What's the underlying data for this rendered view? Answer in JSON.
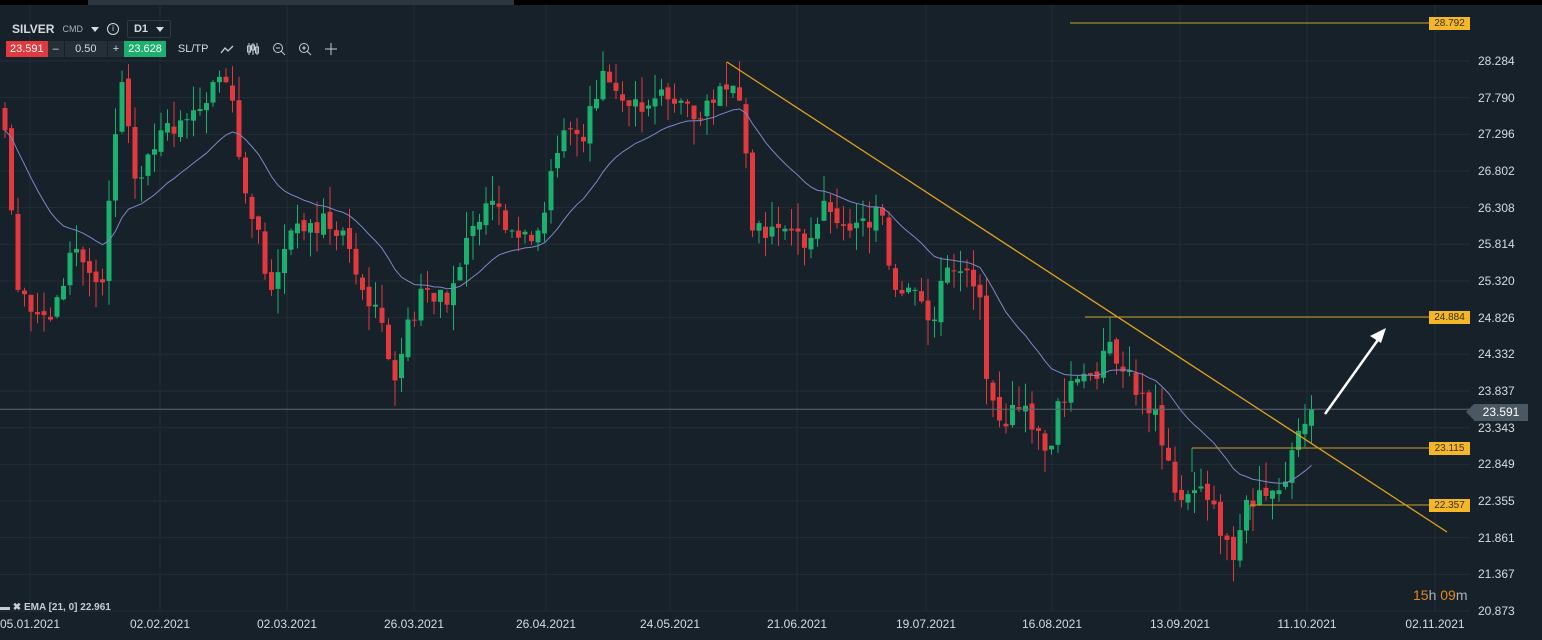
{
  "header": {
    "symbol": "SILVER",
    "type": "CMD",
    "timeframe": "D1",
    "info_icon": "info-icon",
    "dropdown_icon": "chevron-down-icon"
  },
  "trade": {
    "sell_price": "23.591",
    "minus": "–",
    "quantity": "0.50",
    "plus": "+",
    "buy_price": "23.628",
    "sltp": "SL/TP"
  },
  "toolbar": {
    "icons": [
      "line-chart-icon",
      "candlestick-icon",
      "zoom-out-icon",
      "zoom-in-icon",
      "move-icon"
    ]
  },
  "indicator": {
    "label": "EMA [21, 0] 22.961"
  },
  "timer": {
    "h": "15",
    "h_unit": "h ",
    "m": "09",
    "m_unit": "m"
  },
  "colors": {
    "up": "#1bb06d",
    "down": "#e2393f",
    "ema": "#7f86c8",
    "trend": "#e0a21c",
    "level": "#c9a227",
    "grid": "#222d36"
  },
  "chart_data": {
    "type": "candlestick",
    "title": "SILVER D1",
    "ylim": [
      20.873,
      28.284
    ],
    "y_ticks": [
      "28.284",
      "27.790",
      "27.296",
      "26.802",
      "26.308",
      "25.814",
      "25.320",
      "24.826",
      "24.332",
      "23.837",
      "23.343",
      "22.849",
      "22.355",
      "21.861",
      "21.367",
      "20.873"
    ],
    "x_ticks": [
      "05.01.2021",
      "02.02.2021",
      "02.03.2021",
      "26.03.2021",
      "26.04.2021",
      "24.05.2021",
      "21.06.2021",
      "19.07.2021",
      "16.08.2021",
      "13.09.2021",
      "11.10.2021",
      "02.11.2021"
    ],
    "current_price": "23.591",
    "levels": [
      "28.792",
      "24.884",
      "23.115",
      "22.357"
    ],
    "ema_period": 21,
    "close_anchors": [
      [
        0,
        27.35
      ],
      [
        2,
        25.2
      ],
      [
        7,
        24.8
      ],
      [
        10,
        25.7
      ],
      [
        15,
        25.3
      ],
      [
        16,
        26.4
      ],
      [
        18,
        28.0
      ],
      [
        20,
        26.7
      ],
      [
        24,
        27.35
      ],
      [
        28,
        27.5
      ],
      [
        32,
        28.0
      ],
      [
        35,
        27.75
      ],
      [
        37,
        26.5
      ],
      [
        41,
        25.2
      ],
      [
        44,
        26.0
      ],
      [
        47,
        26.1
      ],
      [
        52,
        26.0
      ],
      [
        55,
        25.2
      ],
      [
        57,
        25.0
      ],
      [
        60,
        23.98
      ],
      [
        62,
        24.8
      ],
      [
        65,
        25.2
      ],
      [
        68,
        25.0
      ],
      [
        71,
        25.9
      ],
      [
        75,
        26.4
      ],
      [
        78,
        26.0
      ],
      [
        82,
        26.0
      ],
      [
        84,
        26.8
      ],
      [
        86,
        27.35
      ],
      [
        89,
        27.2
      ],
      [
        92,
        28.15
      ],
      [
        95,
        27.75
      ],
      [
        98,
        27.6
      ],
      [
        101,
        27.9
      ],
      [
        104,
        27.75
      ],
      [
        106,
        27.5
      ],
      [
        108,
        27.75
      ],
      [
        111,
        27.9
      ],
      [
        113,
        27.75
      ],
      [
        115,
        26.0
      ],
      [
        117,
        25.9
      ],
      [
        121,
        26.0
      ],
      [
        124,
        25.9
      ],
      [
        126,
        26.4
      ],
      [
        130,
        26.0
      ],
      [
        135,
        26.2
      ],
      [
        137,
        25.2
      ],
      [
        140,
        25.2
      ],
      [
        143,
        24.8
      ],
      [
        145,
        25.5
      ],
      [
        147,
        25.45
      ],
      [
        150,
        25.1
      ],
      [
        151,
        24.0
      ],
      [
        153,
        23.44
      ],
      [
        156,
        23.6
      ],
      [
        159,
        23.3
      ],
      [
        161,
        23.1
      ],
      [
        162,
        23.7
      ],
      [
        165,
        24.0
      ],
      [
        168,
        24.0
      ],
      [
        170,
        24.5
      ],
      [
        172,
        24.1
      ],
      [
        175,
        23.8
      ],
      [
        177,
        23.6
      ],
      [
        179,
        22.9
      ],
      [
        181,
        22.37
      ],
      [
        183,
        22.5
      ],
      [
        185,
        22.37
      ],
      [
        188,
        21.83
      ],
      [
        189,
        21.56
      ],
      [
        191,
        22.37
      ],
      [
        193,
        22.5
      ],
      [
        196,
        22.5
      ],
      [
        198,
        23.04
      ],
      [
        199,
        23.3
      ],
      [
        201,
        23.59
      ]
    ]
  }
}
